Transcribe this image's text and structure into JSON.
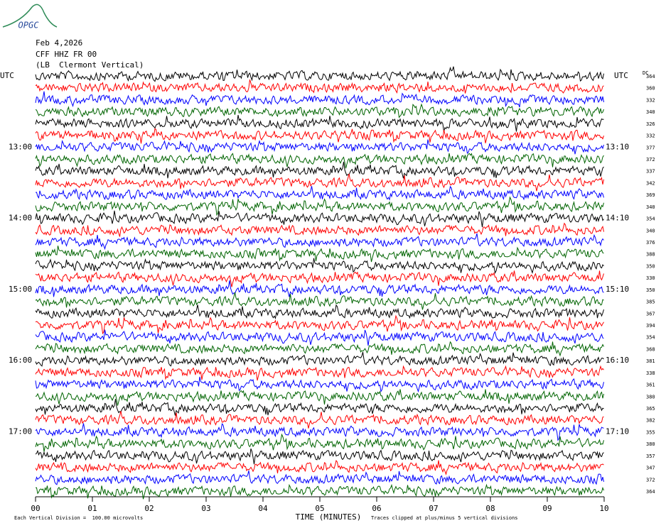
{
  "chart_data": {
    "type": "helicorder",
    "logo": "OPGC",
    "header": [
      "Feb 4,2026",
      "CFF HHZ FR 00",
      "(LB  Clermont Vertical)"
    ],
    "left_axis_title": "UTC",
    "right_axis_title": "UTC",
    "right_column_title": "DC",
    "left_labels": [
      null,
      null,
      null,
      null,
      null,
      null,
      "13:00",
      null,
      null,
      null,
      null,
      null,
      "14:00",
      null,
      null,
      null,
      null,
      null,
      "15:00",
      null,
      null,
      null,
      null,
      null,
      "16:00",
      null,
      null,
      null,
      null,
      null,
      "17:00",
      null,
      null,
      null,
      null,
      null
    ],
    "right_labels": [
      null,
      null,
      null,
      null,
      null,
      null,
      "13:10",
      null,
      null,
      null,
      null,
      null,
      "14:10",
      null,
      null,
      null,
      null,
      null,
      "15:10",
      null,
      null,
      null,
      null,
      null,
      "16:10",
      null,
      null,
      null,
      null,
      null,
      "17:10",
      null,
      null,
      null,
      null,
      null
    ],
    "row_values": [
      364,
      360,
      332,
      340,
      326,
      332,
      377,
      372,
      337,
      342,
      369,
      340,
      354,
      340,
      376,
      388,
      350,
      330,
      350,
      385,
      367,
      394,
      354,
      368,
      381,
      338,
      361,
      380,
      365,
      382,
      355,
      380,
      357,
      347,
      372,
      364
    ],
    "colors": [
      "#000000",
      "#ff0000",
      "#0000ff",
      "#006400"
    ],
    "xlim": [
      0,
      10
    ],
    "xticks": [
      {
        "value": 0,
        "label": "00"
      },
      {
        "value": 1,
        "label": "01"
      },
      {
        "value": 2,
        "label": "02"
      },
      {
        "value": 3,
        "label": "03"
      },
      {
        "value": 4,
        "label": "04"
      },
      {
        "value": 5,
        "label": "05"
      },
      {
        "value": 6,
        "label": "06"
      },
      {
        "value": 7,
        "label": "07"
      },
      {
        "value": 8,
        "label": "08"
      },
      {
        "value": 9,
        "label": "09"
      },
      {
        "value": 10,
        "label": "10"
      }
    ],
    "x_label": "TIME (MINUTES)",
    "footer_left": "Each Vertical Division =  100.00 microvolts",
    "footer_right": "Traces clipped at plus/minus 5 vertical divisions"
  }
}
